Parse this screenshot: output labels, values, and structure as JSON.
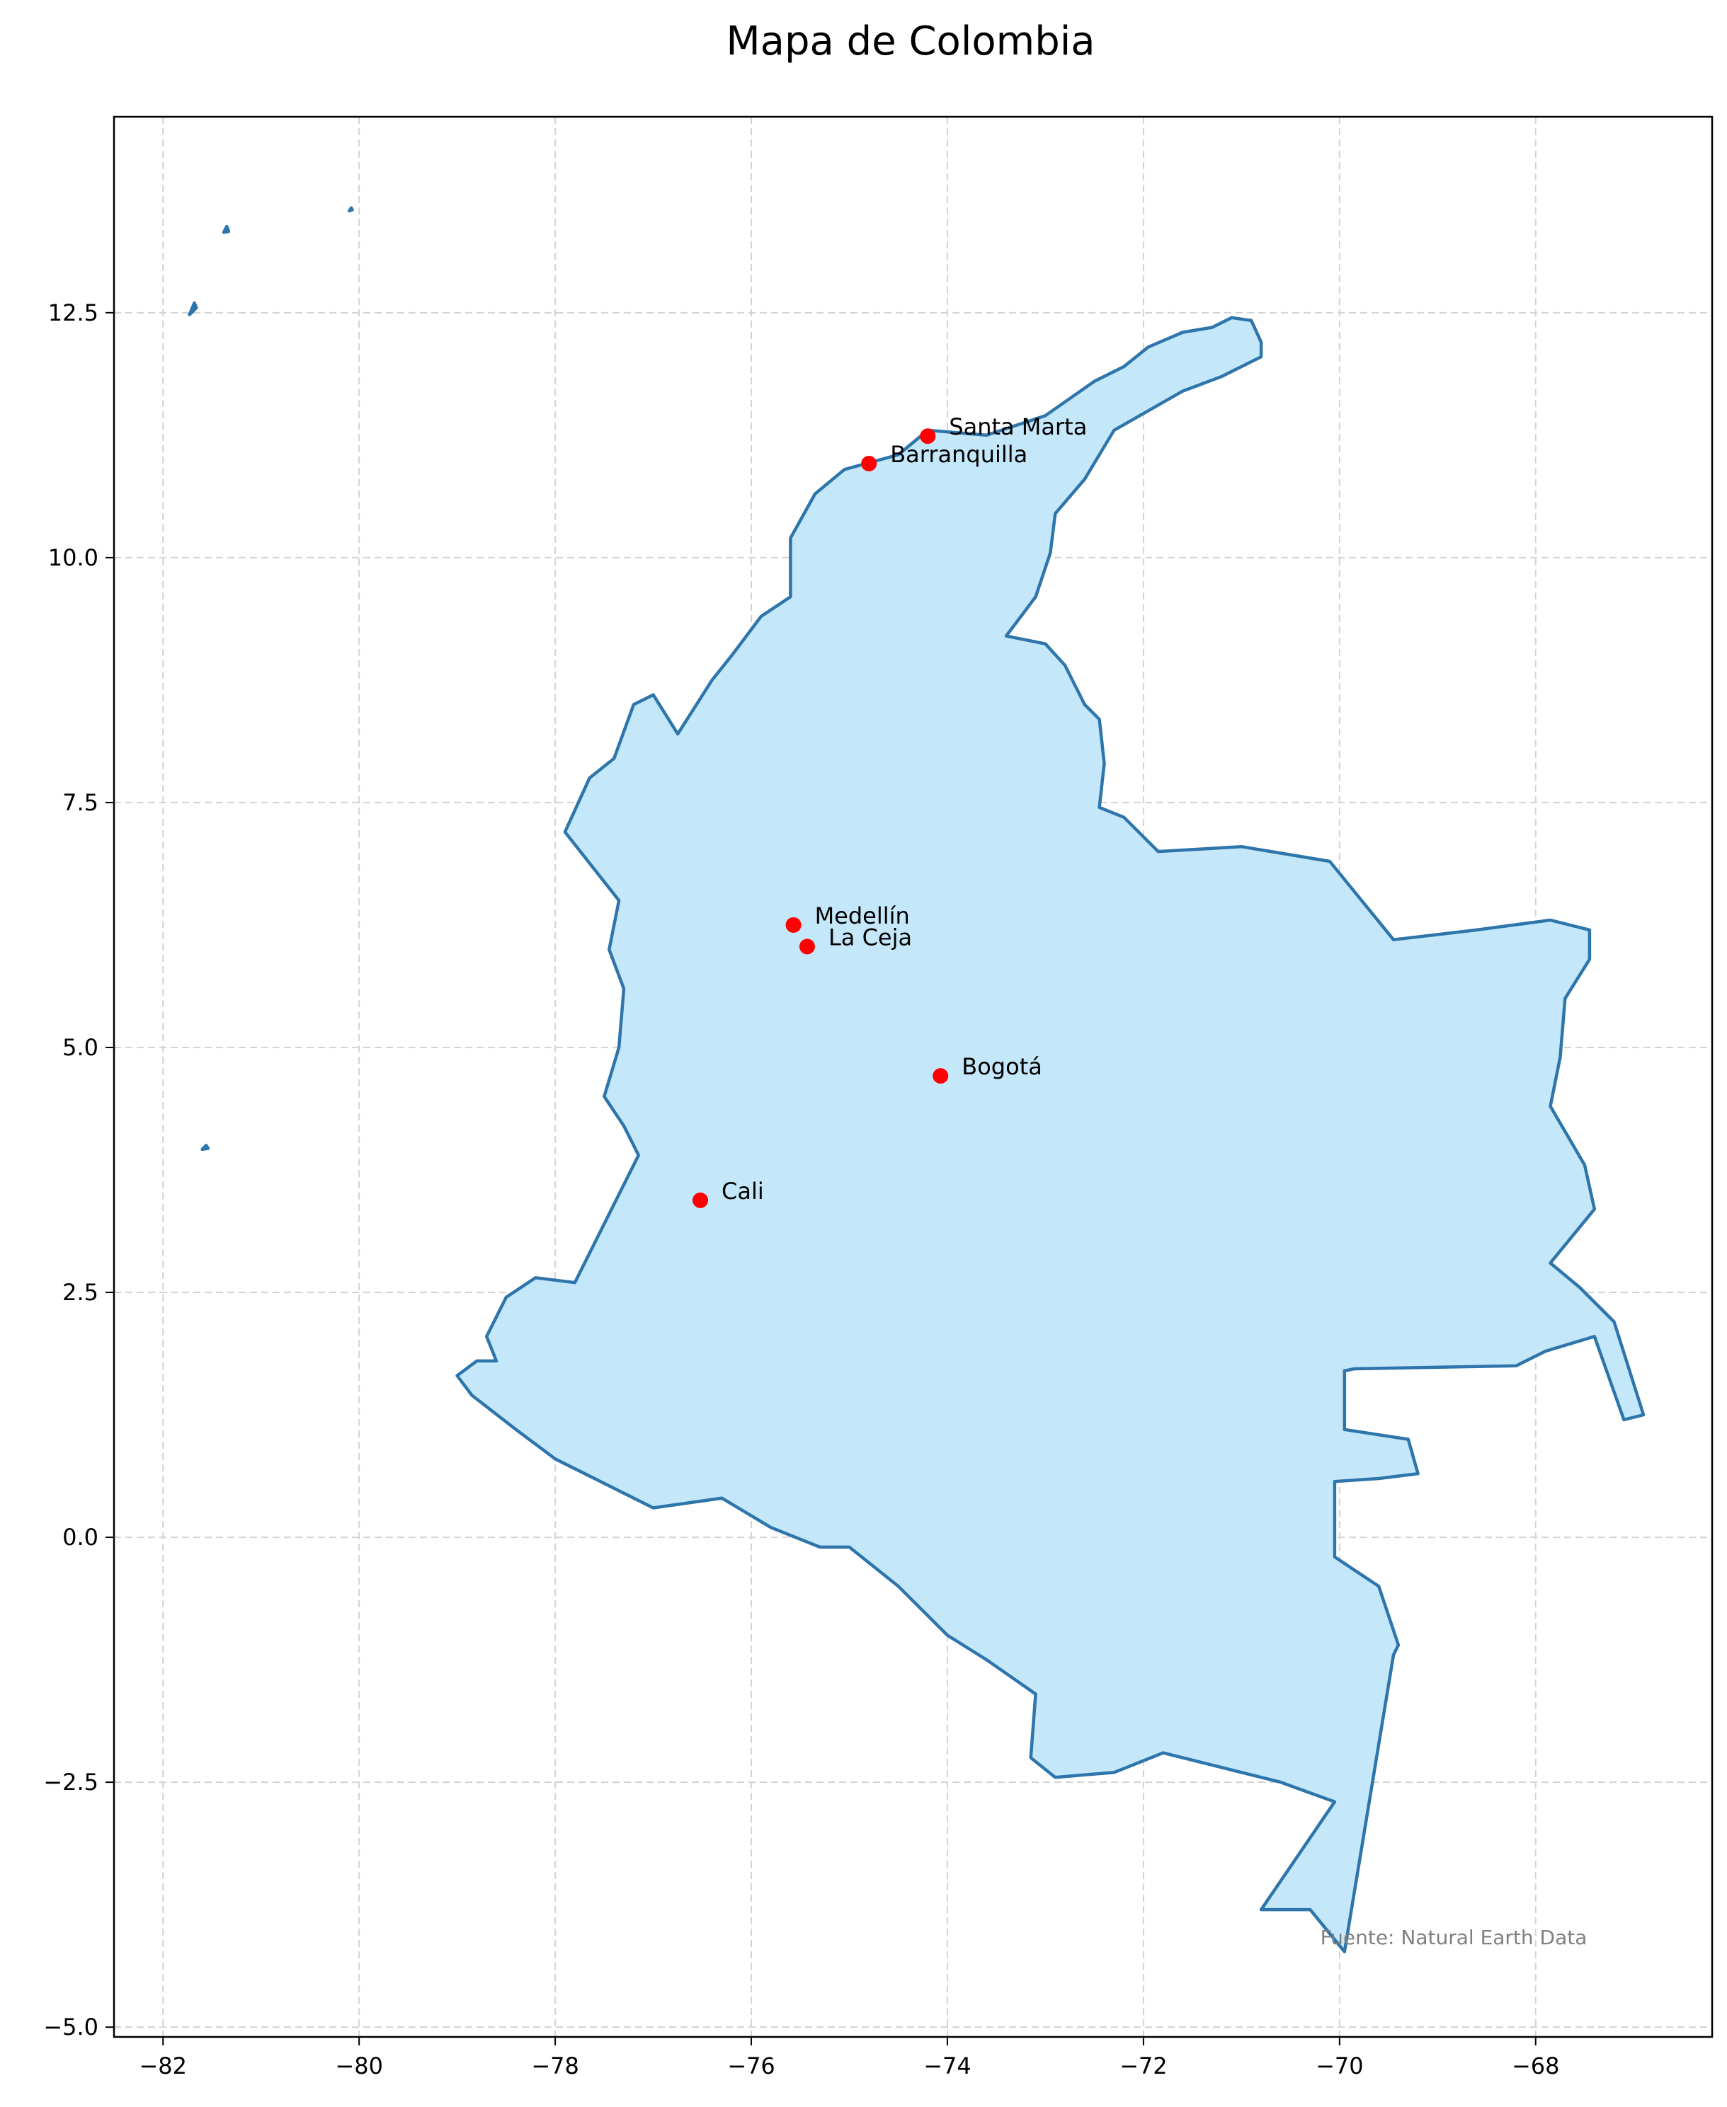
{
  "title": "Mapa de Colombia",
  "source_note": "Fuente: Natural Earth Data",
  "colors": {
    "land_fill": "#c4e8f9",
    "border": "#2e75ab",
    "city_marker": "#ff0000",
    "grid": "#d3d3d3",
    "source_text": "#808080"
  },
  "chart_data": {
    "type": "map",
    "title": "Mapa de Colombia",
    "xlim": [
      -82.5,
      -66.2
    ],
    "ylim": [
      -5.1,
      14.5
    ],
    "grid": true,
    "x_ticks": [
      -82,
      -80,
      -78,
      -76,
      -74,
      -72,
      -70,
      -68
    ],
    "y_ticks": [
      -5.0,
      -2.5,
      0.0,
      2.5,
      5.0,
      7.5,
      10.0,
      12.5
    ],
    "x_tick_labels": [
      "−82",
      "−80",
      "−78",
      "−76",
      "−74",
      "−72",
      "−70",
      "−68"
    ],
    "y_tick_labels": [
      "−5.0",
      "−2.5",
      "0.0",
      "2.5",
      "5.0",
      "7.5",
      "10.0",
      "12.5"
    ],
    "cities": [
      {
        "name": "Santa Marta",
        "lon": -74.2,
        "lat": 11.24
      },
      {
        "name": "Barranquilla",
        "lon": -74.8,
        "lat": 10.96
      },
      {
        "name": "Medellín",
        "lon": -75.57,
        "lat": 6.25
      },
      {
        "name": "La Ceja",
        "lon": -75.43,
        "lat": 6.03
      },
      {
        "name": "Bogotá",
        "lon": -74.07,
        "lat": 4.71
      },
      {
        "name": "Cali",
        "lon": -76.52,
        "lat": 3.44
      }
    ],
    "mainland_outline": [
      [
        -71.3,
        12.35
      ],
      [
        -71.1,
        12.45
      ],
      [
        -70.9,
        12.42
      ],
      [
        -70.8,
        12.2
      ],
      [
        -70.8,
        12.05
      ],
      [
        -71.2,
        11.85
      ],
      [
        -71.6,
        11.7
      ],
      [
        -72.3,
        11.3
      ],
      [
        -72.6,
        10.8
      ],
      [
        -72.9,
        10.45
      ],
      [
        -72.95,
        10.05
      ],
      [
        -73.1,
        9.6
      ],
      [
        -73.4,
        9.2
      ],
      [
        -73.0,
        9.12
      ],
      [
        -72.8,
        8.9
      ],
      [
        -72.6,
        8.5
      ],
      [
        -72.45,
        8.35
      ],
      [
        -72.4,
        7.9
      ],
      [
        -72.45,
        7.45
      ],
      [
        -72.2,
        7.35
      ],
      [
        -71.85,
        7.0
      ],
      [
        -71.0,
        7.05
      ],
      [
        -70.1,
        6.9
      ],
      [
        -69.45,
        6.1
      ],
      [
        -68.6,
        6.2
      ],
      [
        -67.85,
        6.3
      ],
      [
        -67.45,
        6.2
      ],
      [
        -67.45,
        5.9
      ],
      [
        -67.7,
        5.5
      ],
      [
        -67.75,
        4.9
      ],
      [
        -67.85,
        4.4
      ],
      [
        -67.5,
        3.8
      ],
      [
        -67.4,
        3.35
      ],
      [
        -67.85,
        2.8
      ],
      [
        -67.55,
        2.55
      ],
      [
        -67.2,
        2.2
      ],
      [
        -66.9,
        1.25
      ],
      [
        -67.1,
        1.2
      ],
      [
        -67.4,
        2.05
      ],
      [
        -67.9,
        1.9
      ],
      [
        -68.2,
        1.75
      ],
      [
        -69.85,
        1.72
      ],
      [
        -69.95,
        1.7
      ],
      [
        -69.95,
        1.1
      ],
      [
        -69.3,
        1.0
      ],
      [
        -69.2,
        0.65
      ],
      [
        -69.6,
        0.6
      ],
      [
        -70.05,
        0.57
      ],
      [
        -70.05,
        -0.2
      ],
      [
        -69.6,
        -0.5
      ],
      [
        -69.4,
        -1.1
      ],
      [
        -69.45,
        -1.2
      ],
      [
        -69.95,
        -4.23
      ],
      [
        -70.3,
        -3.8
      ],
      [
        -70.8,
        -3.8
      ],
      [
        -70.05,
        -2.7
      ],
      [
        -70.6,
        -2.5
      ],
      [
        -71.4,
        -2.3
      ],
      [
        -71.8,
        -2.2
      ],
      [
        -72.3,
        -2.4
      ],
      [
        -72.9,
        -2.45
      ],
      [
        -73.15,
        -2.25
      ],
      [
        -73.1,
        -1.6
      ],
      [
        -73.6,
        -1.25
      ],
      [
        -74.0,
        -1.0
      ],
      [
        -74.5,
        -0.5
      ],
      [
        -75.0,
        -0.1
      ],
      [
        -75.3,
        -0.1
      ],
      [
        -75.8,
        0.1
      ],
      [
        -76.3,
        0.4
      ],
      [
        -77.0,
        0.3
      ],
      [
        -77.5,
        0.55
      ],
      [
        -78.0,
        0.8
      ],
      [
        -78.4,
        1.1
      ],
      [
        -78.85,
        1.45
      ],
      [
        -79.0,
        1.65
      ],
      [
        -78.8,
        1.8
      ],
      [
        -78.6,
        1.8
      ],
      [
        -78.7,
        2.05
      ],
      [
        -78.5,
        2.45
      ],
      [
        -78.2,
        2.65
      ],
      [
        -77.8,
        2.6
      ],
      [
        -77.4,
        3.4
      ],
      [
        -77.15,
        3.9
      ],
      [
        -77.3,
        4.2
      ],
      [
        -77.5,
        4.5
      ],
      [
        -77.35,
        5.0
      ],
      [
        -77.3,
        5.6
      ],
      [
        -77.45,
        6.0
      ],
      [
        -77.35,
        6.5
      ],
      [
        -77.9,
        7.2
      ],
      [
        -77.65,
        7.75
      ],
      [
        -77.4,
        7.95
      ],
      [
        -77.2,
        8.5
      ],
      [
        -77.0,
        8.6
      ],
      [
        -76.75,
        8.2
      ],
      [
        -76.4,
        8.75
      ],
      [
        -76.2,
        9.0
      ],
      [
        -75.9,
        9.4
      ],
      [
        -75.6,
        9.6
      ],
      [
        -75.6,
        10.2
      ],
      [
        -75.35,
        10.65
      ],
      [
        -75.05,
        10.9
      ],
      [
        -74.5,
        11.05
      ],
      [
        -74.2,
        11.3
      ],
      [
        -73.6,
        11.25
      ],
      [
        -73.0,
        11.45
      ],
      [
        -72.5,
        11.8
      ],
      [
        -72.2,
        11.95
      ],
      [
        -71.95,
        12.15
      ],
      [
        -71.6,
        12.3
      ],
      [
        -71.3,
        12.35
      ]
    ],
    "islands": [
      [
        [
          -81.73,
          12.48
        ],
        [
          -81.68,
          12.6
        ],
        [
          -81.66,
          12.55
        ],
        [
          -81.73,
          12.48
        ]
      ],
      [
        [
          -81.38,
          13.32
        ],
        [
          -81.35,
          13.38
        ],
        [
          -81.33,
          13.33
        ],
        [
          -81.38,
          13.32
        ]
      ],
      [
        [
          -80.1,
          13.54
        ],
        [
          -80.08,
          13.57
        ],
        [
          -80.07,
          13.55
        ],
        [
          -80.1,
          13.54
        ]
      ],
      [
        [
          -81.6,
          3.96
        ],
        [
          -81.56,
          4.0
        ],
        [
          -81.54,
          3.97
        ],
        [
          -81.6,
          3.96
        ]
      ]
    ]
  }
}
